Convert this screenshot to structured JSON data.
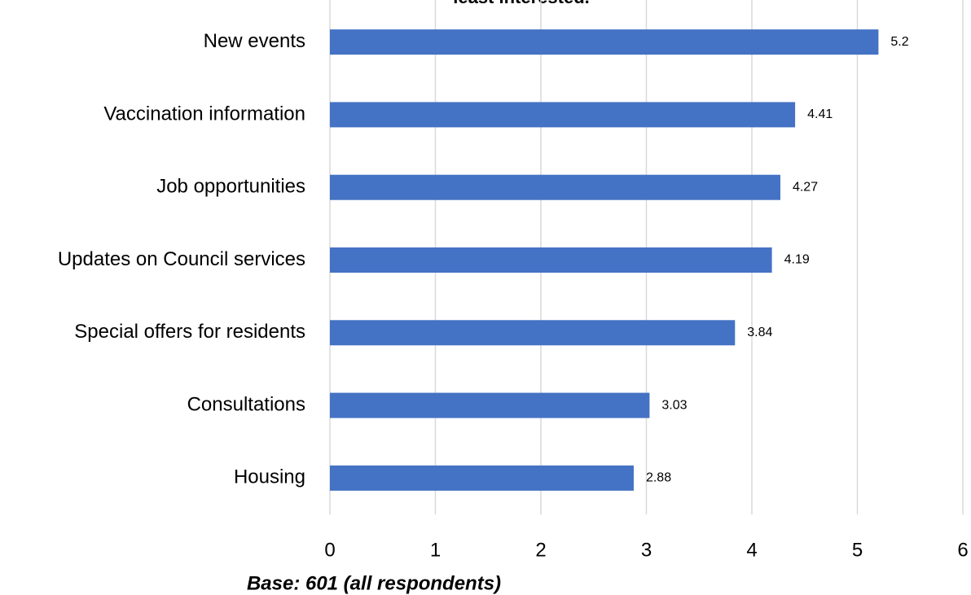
{
  "chart_data": {
    "type": "bar",
    "orientation": "horizontal",
    "title": "least interested.",
    "categories": [
      "New events",
      "Vaccination information",
      "Job opportunities",
      "Updates on Council services",
      "Special offers for residents",
      "Consultations",
      "Housing"
    ],
    "values": [
      5.2,
      4.41,
      4.27,
      4.19,
      3.84,
      3.03,
      2.88
    ],
    "color": "#4472c4",
    "xlim": [
      0,
      6
    ],
    "xticks": [
      0,
      1,
      2,
      3,
      4,
      5,
      6
    ],
    "grid": true,
    "note": "Base: 601 (all respondents)"
  }
}
